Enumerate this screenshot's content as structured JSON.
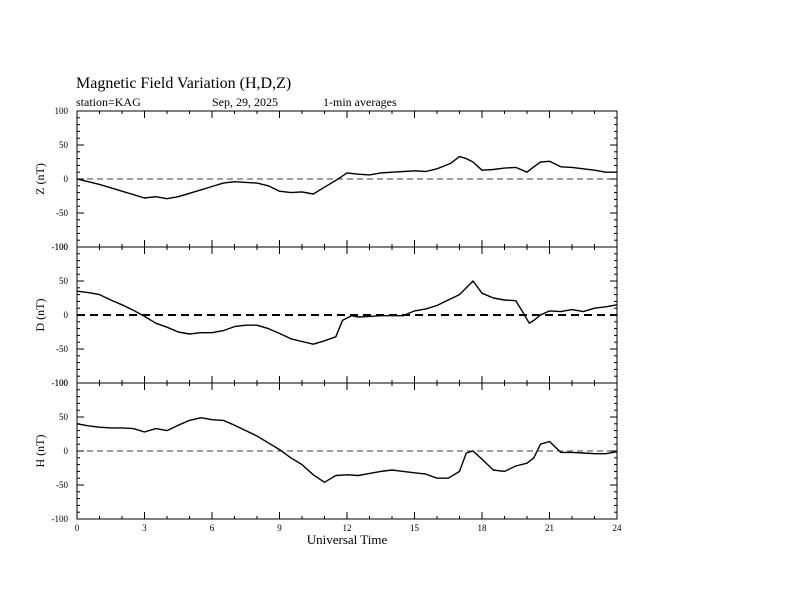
{
  "header": {
    "title": "Magnetic Field Variation (H,D,Z)",
    "station": "station=KAG",
    "date": "Sep, 29, 2025",
    "averaging": "1-min averages"
  },
  "chart_data": {
    "type": "line",
    "title": "Magnetic Field Variation (H,D,Z)",
    "xlabel": "Universal Time",
    "xlim": [
      0,
      24
    ],
    "x_ticks": [
      0,
      3,
      6,
      9,
      12,
      15,
      18,
      21,
      24
    ],
    "x_tick_labels": [
      "0",
      "3",
      "6",
      "9",
      "12",
      "15",
      "18",
      "21",
      "24"
    ],
    "panels": [
      {
        "name": "Z",
        "ylabel": "Z (nT)",
        "ylim": [
          -100,
          100
        ],
        "y_ticks": [
          100,
          50,
          0,
          -50,
          -100
        ],
        "y_tick_labels": [
          "100",
          "50",
          "0",
          "-50",
          "-100"
        ],
        "baseline_style": "dashed-thin",
        "x": [
          0,
          0.5,
          1,
          1.5,
          2,
          2.5,
          3,
          3.5,
          4,
          4.5,
          5,
          5.5,
          6,
          6.5,
          7,
          7.5,
          8,
          8.5,
          9,
          9.5,
          10,
          10.5,
          11,
          11.5,
          12,
          12.5,
          13,
          13.5,
          14,
          14.5,
          15,
          15.5,
          16,
          16.3,
          16.6,
          17,
          17.3,
          17.6,
          18,
          18.5,
          19,
          19.5,
          20,
          20.3,
          20.6,
          21,
          21.5,
          22,
          22.5,
          23,
          23.5,
          24
        ],
        "values": [
          0,
          -4,
          -8,
          -13,
          -18,
          -23,
          -28,
          -26,
          -29,
          -26,
          -21,
          -16,
          -11,
          -6,
          -4,
          -5,
          -6,
          -10,
          -18,
          -20,
          -19,
          -22,
          -12,
          -2,
          9,
          7,
          6,
          9,
          10,
          11,
          12,
          11,
          15,
          19,
          23,
          33,
          30,
          25,
          13,
          14,
          16,
          17,
          10,
          18,
          25,
          26,
          18,
          17,
          15,
          13,
          10,
          10
        ]
      },
      {
        "name": "D",
        "ylabel": "D (nT)",
        "ylim": [
          -100,
          100
        ],
        "y_ticks": [
          100,
          50,
          0,
          -50,
          -100
        ],
        "y_tick_labels": [
          "100",
          "50",
          "0",
          "-50",
          "-100"
        ],
        "baseline_style": "dashed-thick",
        "x": [
          0,
          0.5,
          1,
          1.5,
          2,
          2.5,
          3,
          3.5,
          4,
          4.5,
          5,
          5.5,
          6,
          6.5,
          7,
          7.5,
          8,
          8.5,
          9,
          9.5,
          10,
          10.5,
          11,
          11.5,
          11.8,
          12.2,
          12.5,
          13,
          13.5,
          14,
          14.5,
          15,
          15.5,
          16,
          16.5,
          17,
          17.3,
          17.6,
          18,
          18.5,
          19,
          19.5,
          19.8,
          20.1,
          20.3,
          20.6,
          21,
          21.5,
          22,
          22.5,
          23,
          23.5,
          24
        ],
        "values": [
          35,
          33,
          30,
          22,
          15,
          7,
          -2,
          -12,
          -18,
          -25,
          -28,
          -26,
          -26,
          -23,
          -17,
          -15,
          -15,
          -20,
          -27,
          -35,
          -39,
          -43,
          -38,
          -32,
          -8,
          -1,
          -3,
          -2,
          -1,
          -1,
          -1,
          6,
          9,
          14,
          22,
          30,
          40,
          50,
          32,
          25,
          22,
          21,
          5,
          -12,
          -8,
          0,
          6,
          5,
          8,
          5,
          10,
          12,
          15
        ]
      },
      {
        "name": "H",
        "ylabel": "H (nT)",
        "ylim": [
          -100,
          100
        ],
        "y_ticks": [
          100,
          50,
          0,
          -50,
          -100
        ],
        "y_tick_labels": [
          "100",
          "50",
          "0",
          "-50",
          "-100"
        ],
        "baseline_style": "dashed-thin",
        "x": [
          0,
          0.5,
          1,
          1.5,
          2,
          2.5,
          3,
          3.5,
          4,
          4.5,
          5,
          5.5,
          6,
          6.5,
          7,
          7.5,
          8,
          8.5,
          9,
          9.5,
          10,
          10.5,
          11,
          11.5,
          12,
          12.5,
          13,
          13.5,
          14,
          14.5,
          15,
          15.5,
          16,
          16.5,
          17,
          17.3,
          17.6,
          18,
          18.5,
          19,
          19.5,
          20,
          20.3,
          20.6,
          21,
          21.5,
          22,
          22.5,
          23,
          23.5,
          24
        ],
        "values": [
          40,
          37,
          35,
          34,
          34,
          33,
          28,
          33,
          30,
          38,
          45,
          49,
          46,
          45,
          38,
          30,
          22,
          12,
          2,
          -10,
          -20,
          -35,
          -46,
          -36,
          -35,
          -36,
          -33,
          -30,
          -28,
          -30,
          -32,
          -34,
          -40,
          -40,
          -30,
          -3,
          0,
          -12,
          -28,
          -30,
          -22,
          -18,
          -10,
          10,
          14,
          -2,
          -2,
          -3,
          -4,
          -4,
          -1
        ]
      }
    ]
  }
}
